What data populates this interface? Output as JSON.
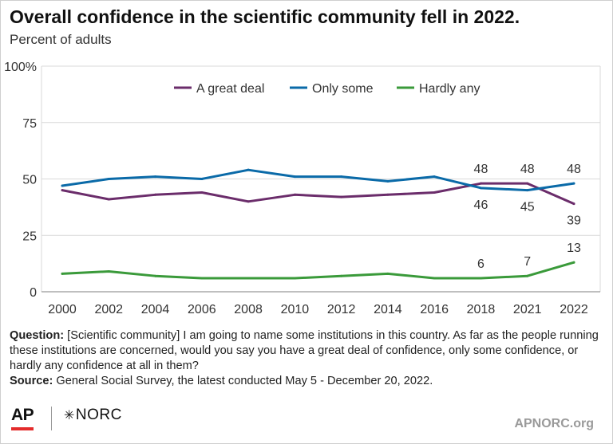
{
  "title": "Overall confidence in the scientific community fell in 2022.",
  "subtitle": "Percent of adults",
  "question_label": "Question:",
  "question_text": "[Scientific community] I am going to name some institutions in this country. As far as the people running these institutions are concerned, would you say you have a great deal of confidence, only some confidence, or hardly any confidence at all in them?",
  "source_label": "Source:",
  "source_text": "General Social Survey, the latest conducted May 5 - December 20, 2022.",
  "logo_ap": "AP",
  "logo_norc": "NORC",
  "site": "APNORC.org",
  "colors": {
    "great_deal": "#6b2d6b",
    "only_some": "#0a6aa8",
    "hardly_any": "#3a9a3a",
    "grid": "#d9d9d9",
    "axis": "#999999"
  },
  "chart_data": {
    "type": "line",
    "x": [
      "2000",
      "2002",
      "2004",
      "2006",
      "2008",
      "2010",
      "2012",
      "2014",
      "2016",
      "2018",
      "2021",
      "2022"
    ],
    "ylim": [
      0,
      100
    ],
    "yticks": [
      "0",
      "25",
      "50",
      "75",
      "100%"
    ],
    "ytick_values": [
      0,
      25,
      50,
      75,
      100
    ],
    "grid": true,
    "legend_position": "top",
    "series": [
      {
        "name": "A great deal",
        "key": "great_deal",
        "values": [
          45,
          41,
          43,
          44,
          40,
          43,
          42,
          43,
          44,
          48,
          48,
          39
        ],
        "labels": {
          "9": "48",
          "10": "48",
          "11": "39"
        },
        "label_side": {
          "9": "above",
          "10": "above",
          "11": "below"
        }
      },
      {
        "name": "Only some",
        "key": "only_some",
        "values": [
          47,
          50,
          51,
          50,
          54,
          51,
          51,
          49,
          51,
          46,
          45,
          48
        ],
        "labels": {
          "9": "46",
          "10": "45",
          "11": "48"
        },
        "label_side": {
          "9": "below",
          "10": "below",
          "11": "above"
        }
      },
      {
        "name": "Hardly any",
        "key": "hardly_any",
        "values": [
          8,
          9,
          7,
          6,
          6,
          6,
          7,
          8,
          6,
          6,
          7,
          13
        ],
        "labels": {
          "9": "6",
          "10": "7",
          "11": "13"
        },
        "label_side": {
          "9": "above",
          "10": "above",
          "11": "above"
        }
      }
    ]
  }
}
